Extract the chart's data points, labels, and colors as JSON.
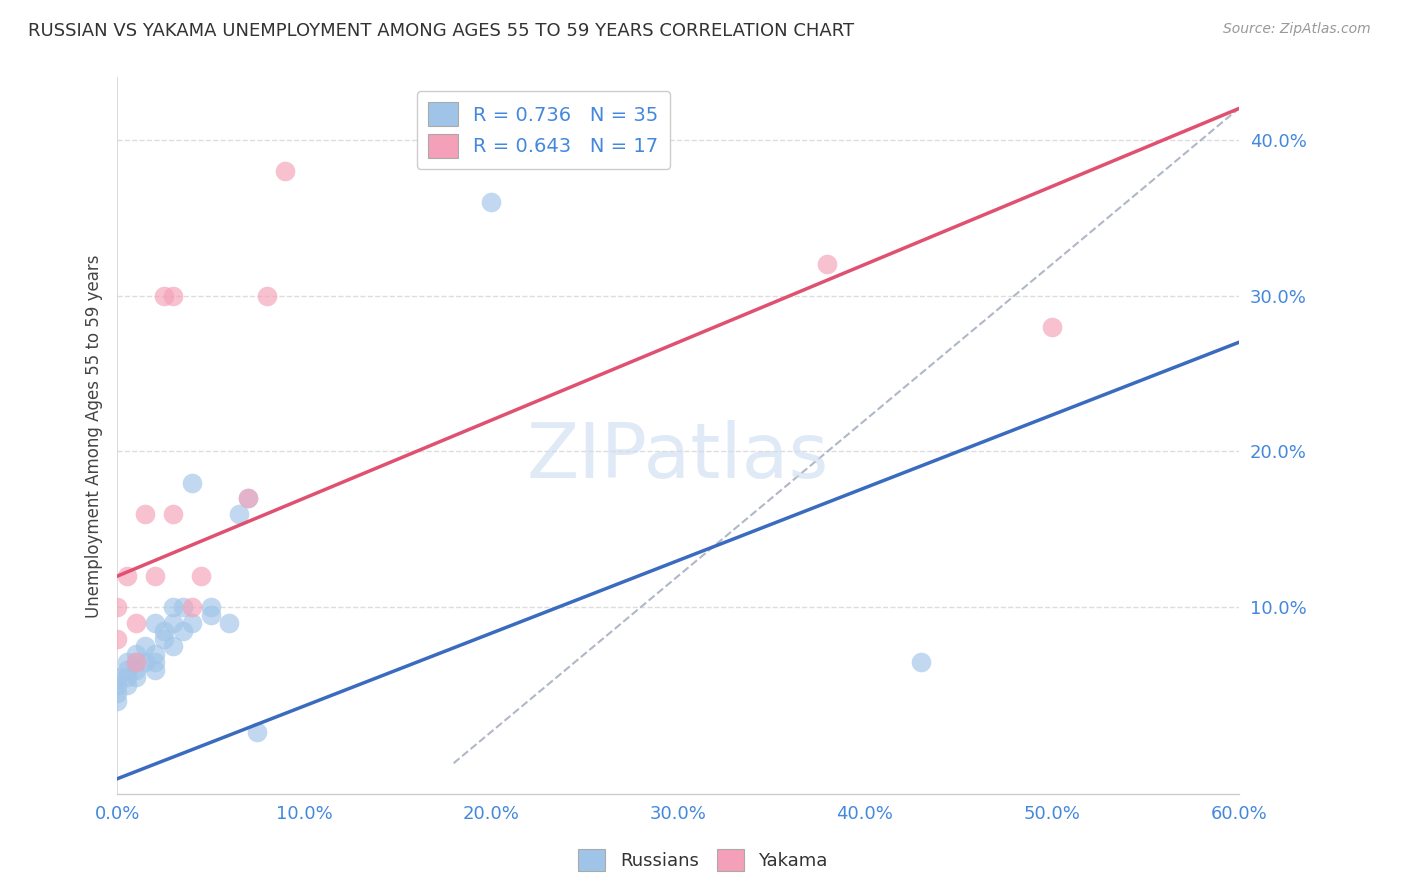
{
  "title": "RUSSIAN VS YAKAMA UNEMPLOYMENT AMONG AGES 55 TO 59 YEARS CORRELATION CHART",
  "source": "Source: ZipAtlas.com",
  "xlabel_ticks": [
    "0.0%",
    "10.0%",
    "20.0%",
    "30.0%",
    "40.0%",
    "50.0%",
    "60.0%"
  ],
  "ylabel_label": "Unemployment Among Ages 55 to 59 years",
  "ylabel_ticks_labels": [
    "10.0%",
    "20.0%",
    "30.0%",
    "40.0%"
  ],
  "ylabel_ticks_vals": [
    0.1,
    0.2,
    0.3,
    0.4
  ],
  "xlim": [
    0.0,
    0.6
  ],
  "ylim": [
    -0.02,
    0.44
  ],
  "watermark": "ZIPatlas",
  "russians_x": [
    0.0,
    0.0,
    0.0,
    0.0,
    0.005,
    0.005,
    0.005,
    0.005,
    0.01,
    0.01,
    0.01,
    0.01,
    0.015,
    0.015,
    0.02,
    0.02,
    0.02,
    0.02,
    0.025,
    0.025,
    0.03,
    0.03,
    0.03,
    0.035,
    0.035,
    0.04,
    0.04,
    0.05,
    0.05,
    0.06,
    0.065,
    0.07,
    0.075,
    0.2,
    0.43
  ],
  "russians_y": [
    0.04,
    0.045,
    0.05,
    0.055,
    0.05,
    0.055,
    0.06,
    0.065,
    0.055,
    0.06,
    0.065,
    0.07,
    0.065,
    0.075,
    0.06,
    0.065,
    0.07,
    0.09,
    0.08,
    0.085,
    0.075,
    0.09,
    0.1,
    0.085,
    0.1,
    0.09,
    0.18,
    0.095,
    0.1,
    0.09,
    0.16,
    0.17,
    0.02,
    0.36,
    0.065
  ],
  "yakama_x": [
    0.0,
    0.0,
    0.005,
    0.01,
    0.01,
    0.015,
    0.02,
    0.025,
    0.03,
    0.03,
    0.04,
    0.045,
    0.07,
    0.08,
    0.09,
    0.38,
    0.5
  ],
  "yakama_y": [
    0.08,
    0.1,
    0.12,
    0.065,
    0.09,
    0.16,
    0.12,
    0.3,
    0.3,
    0.16,
    0.1,
    0.12,
    0.17,
    0.3,
    0.38,
    0.32,
    0.28
  ],
  "russian_color": "#a0c4e8",
  "yakama_color": "#f4a0b8",
  "russian_line_color": "#3a6bbf",
  "yakama_line_color": "#e05070",
  "dashed_line_color": "#b0b8c8",
  "grid_color": "#dddddd",
  "title_color": "#333333",
  "axis_label_color": "#444444",
  "tick_label_color": "#4488dd",
  "source_color": "#999999",
  "background_color": "#ffffff",
  "russian_R": 0.736,
  "russian_N": 35,
  "yakama_R": 0.643,
  "yakama_N": 17,
  "russian_line_x0": 0.0,
  "russian_line_y0": -0.01,
  "russian_line_x1": 0.6,
  "russian_line_y1": 0.27,
  "yakama_line_x0": 0.0,
  "yakama_line_y0": 0.12,
  "yakama_line_x1": 0.6,
  "yakama_line_y1": 0.42,
  "dashed_line_x0": 0.18,
  "dashed_line_y0": 0.0,
  "dashed_line_x1": 0.6,
  "dashed_line_y1": 0.42
}
